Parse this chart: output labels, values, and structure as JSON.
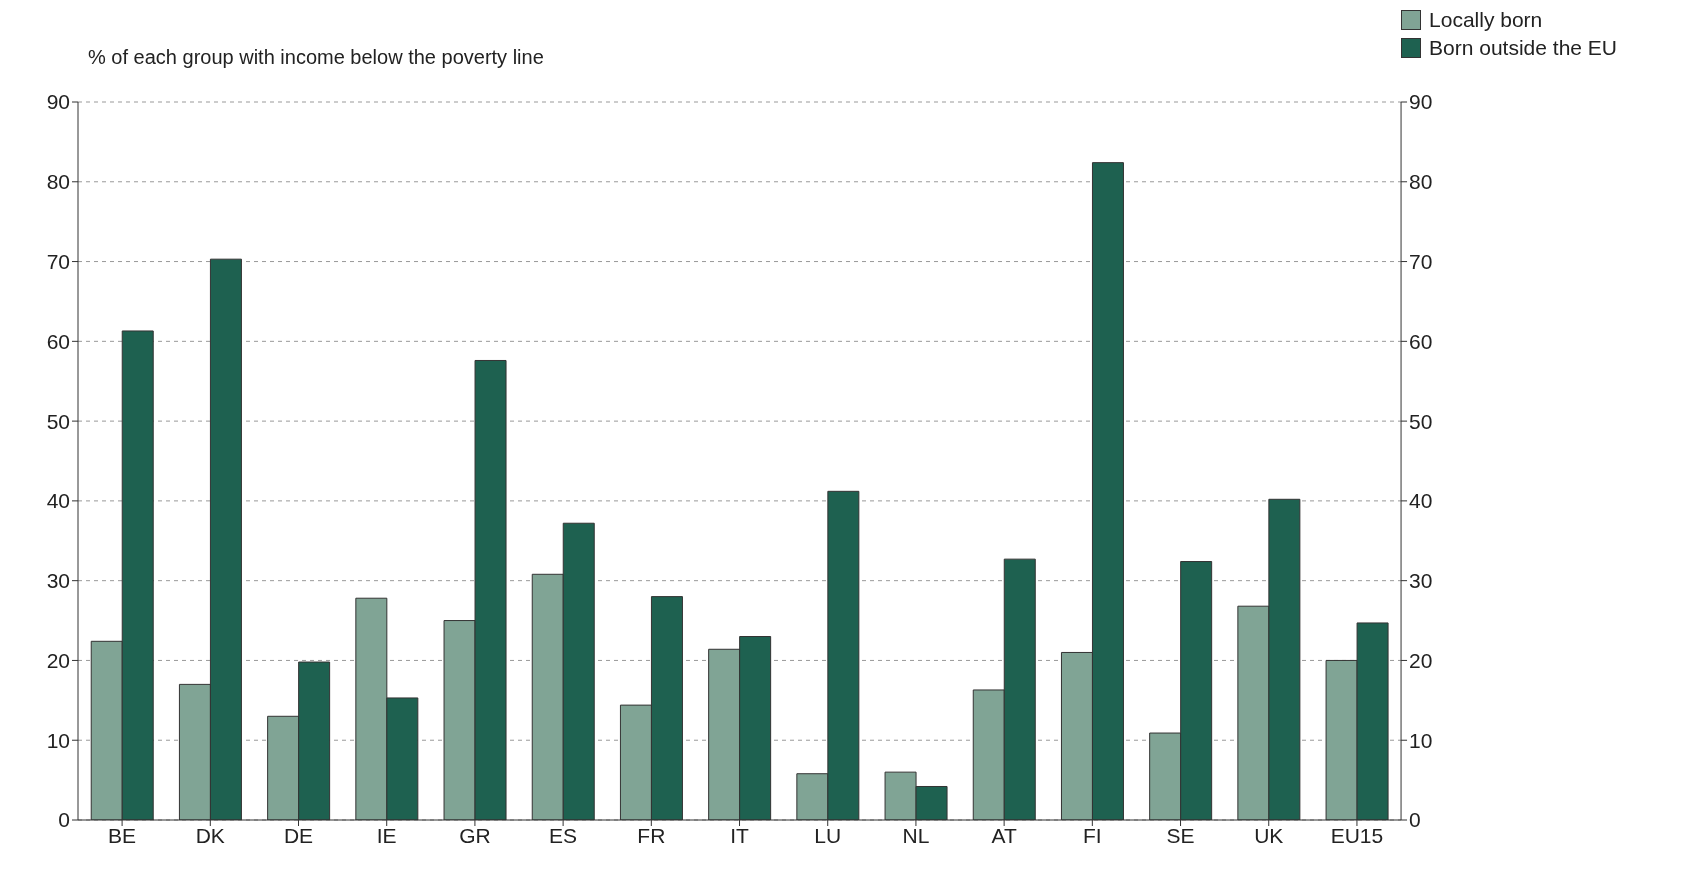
{
  "chart_data": {
    "type": "bar",
    "ylabel": "% of each group with income below the poverty line",
    "categories": [
      "BE",
      "DK",
      "DE",
      "IE",
      "GR",
      "ES",
      "FR",
      "IT",
      "LU",
      "NL",
      "AT",
      "FI",
      "SE",
      "UK",
      "EU15"
    ],
    "series": [
      {
        "name": "Locally born",
        "color": "#80a495",
        "values": [
          22.4,
          17,
          13,
          27.8,
          25,
          30.8,
          14.4,
          21.4,
          5.8,
          6,
          16.3,
          21,
          10.9,
          26.8,
          20
        ]
      },
      {
        "name": "Born outside the EU",
        "color": "#1e6150",
        "values": [
          61.3,
          70.3,
          19.8,
          15.3,
          57.6,
          37.2,
          28,
          23,
          41.2,
          4.2,
          32.7,
          82.4,
          32.4,
          40.2,
          24.7
        ]
      }
    ],
    "ylim": [
      0,
      90
    ],
    "yticks": [
      0,
      10,
      20,
      30,
      40,
      50,
      60,
      70,
      80,
      90
    ],
    "y2lim": [
      0,
      90
    ],
    "y2ticks": [
      0,
      10,
      20,
      30,
      40,
      50,
      60,
      70,
      80,
      90
    ],
    "grid": "y",
    "legend": "top right"
  }
}
